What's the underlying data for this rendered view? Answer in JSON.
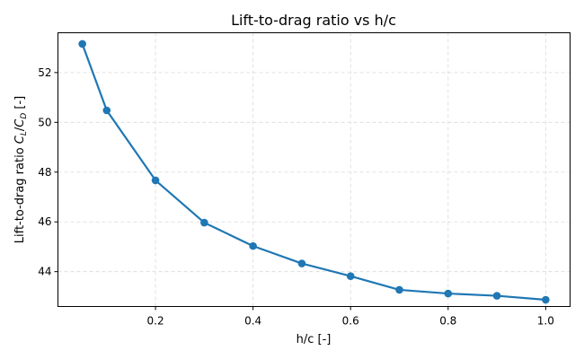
{
  "chart_data": {
    "type": "line",
    "title": "Lift-to-drag ratio vs h/c",
    "xlabel": "h/c [-]",
    "ylabel": {
      "prefix": "Lift-to-drag ratio ",
      "cl": "C",
      "cl_sub": "L",
      "slash": "/",
      "cd": "C",
      "cd_sub": "D",
      "suffix": " [-]"
    },
    "xlim": [
      0.0,
      1.05
    ],
    "ylim": [
      42.6,
      53.6
    ],
    "xticks": [
      0.2,
      0.4,
      0.6,
      0.8,
      1.0
    ],
    "xtick_labels": [
      "0.2",
      "0.4",
      "0.6",
      "0.8",
      "1.0"
    ],
    "yticks": [
      44,
      46,
      48,
      50,
      52
    ],
    "ytick_labels": [
      "44",
      "46",
      "48",
      "50",
      "52"
    ],
    "grid": true,
    "series": [
      {
        "color": "#1f77b4",
        "x": [
          0.05,
          0.1,
          0.2,
          0.3,
          0.4,
          0.5,
          0.6,
          0.7,
          0.8,
          0.9,
          1.0
        ],
        "y": [
          53.15,
          50.48,
          47.67,
          45.97,
          45.03,
          44.33,
          43.82,
          43.27,
          43.12,
          43.03,
          42.87
        ]
      }
    ]
  }
}
